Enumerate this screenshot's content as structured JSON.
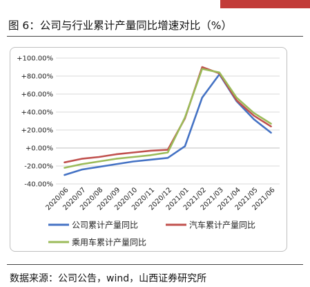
{
  "header": {
    "title": "图 6：公司与行业累计产量同比增速对比（%）"
  },
  "footer": {
    "source": "数据来源：公司公告，wind，山西证券研究所"
  },
  "chart_data": {
    "type": "line",
    "categories": [
      "2020/06",
      "2020/07",
      "2020/08",
      "2020/09",
      "2020/10",
      "2020/11",
      "2020/12",
      "2021/01",
      "2021/02",
      "2021/03",
      "2021/04",
      "2021/05",
      "2021/06"
    ],
    "yticks": [
      "-40.00%",
      "-20.00%",
      "+0.00%",
      "+20.00%",
      "+40.00%",
      "+60.00%",
      "+80.00%",
      "+100.00%"
    ],
    "ylim": [
      -40,
      100
    ],
    "grid": true,
    "legend_position": "bottom",
    "series": [
      {
        "name": "公司累计产量同比",
        "color": "#4472c4",
        "values": [
          -30,
          -24,
          -21,
          -18,
          -15,
          -13,
          -11,
          2,
          56,
          82,
          52,
          32,
          17
        ]
      },
      {
        "name": "汽车累计产量同比",
        "color": "#c0504d",
        "values": [
          -16,
          -12,
          -10,
          -7,
          -5,
          -3,
          -2,
          33,
          90,
          83,
          53,
          36,
          24
        ]
      },
      {
        "name": "乘用车累计产量同比",
        "color": "#9bbb59",
        "values": [
          -22,
          -18,
          -15,
          -12,
          -10,
          -8,
          -5,
          34,
          88,
          84,
          56,
          39,
          27
        ]
      }
    ]
  }
}
